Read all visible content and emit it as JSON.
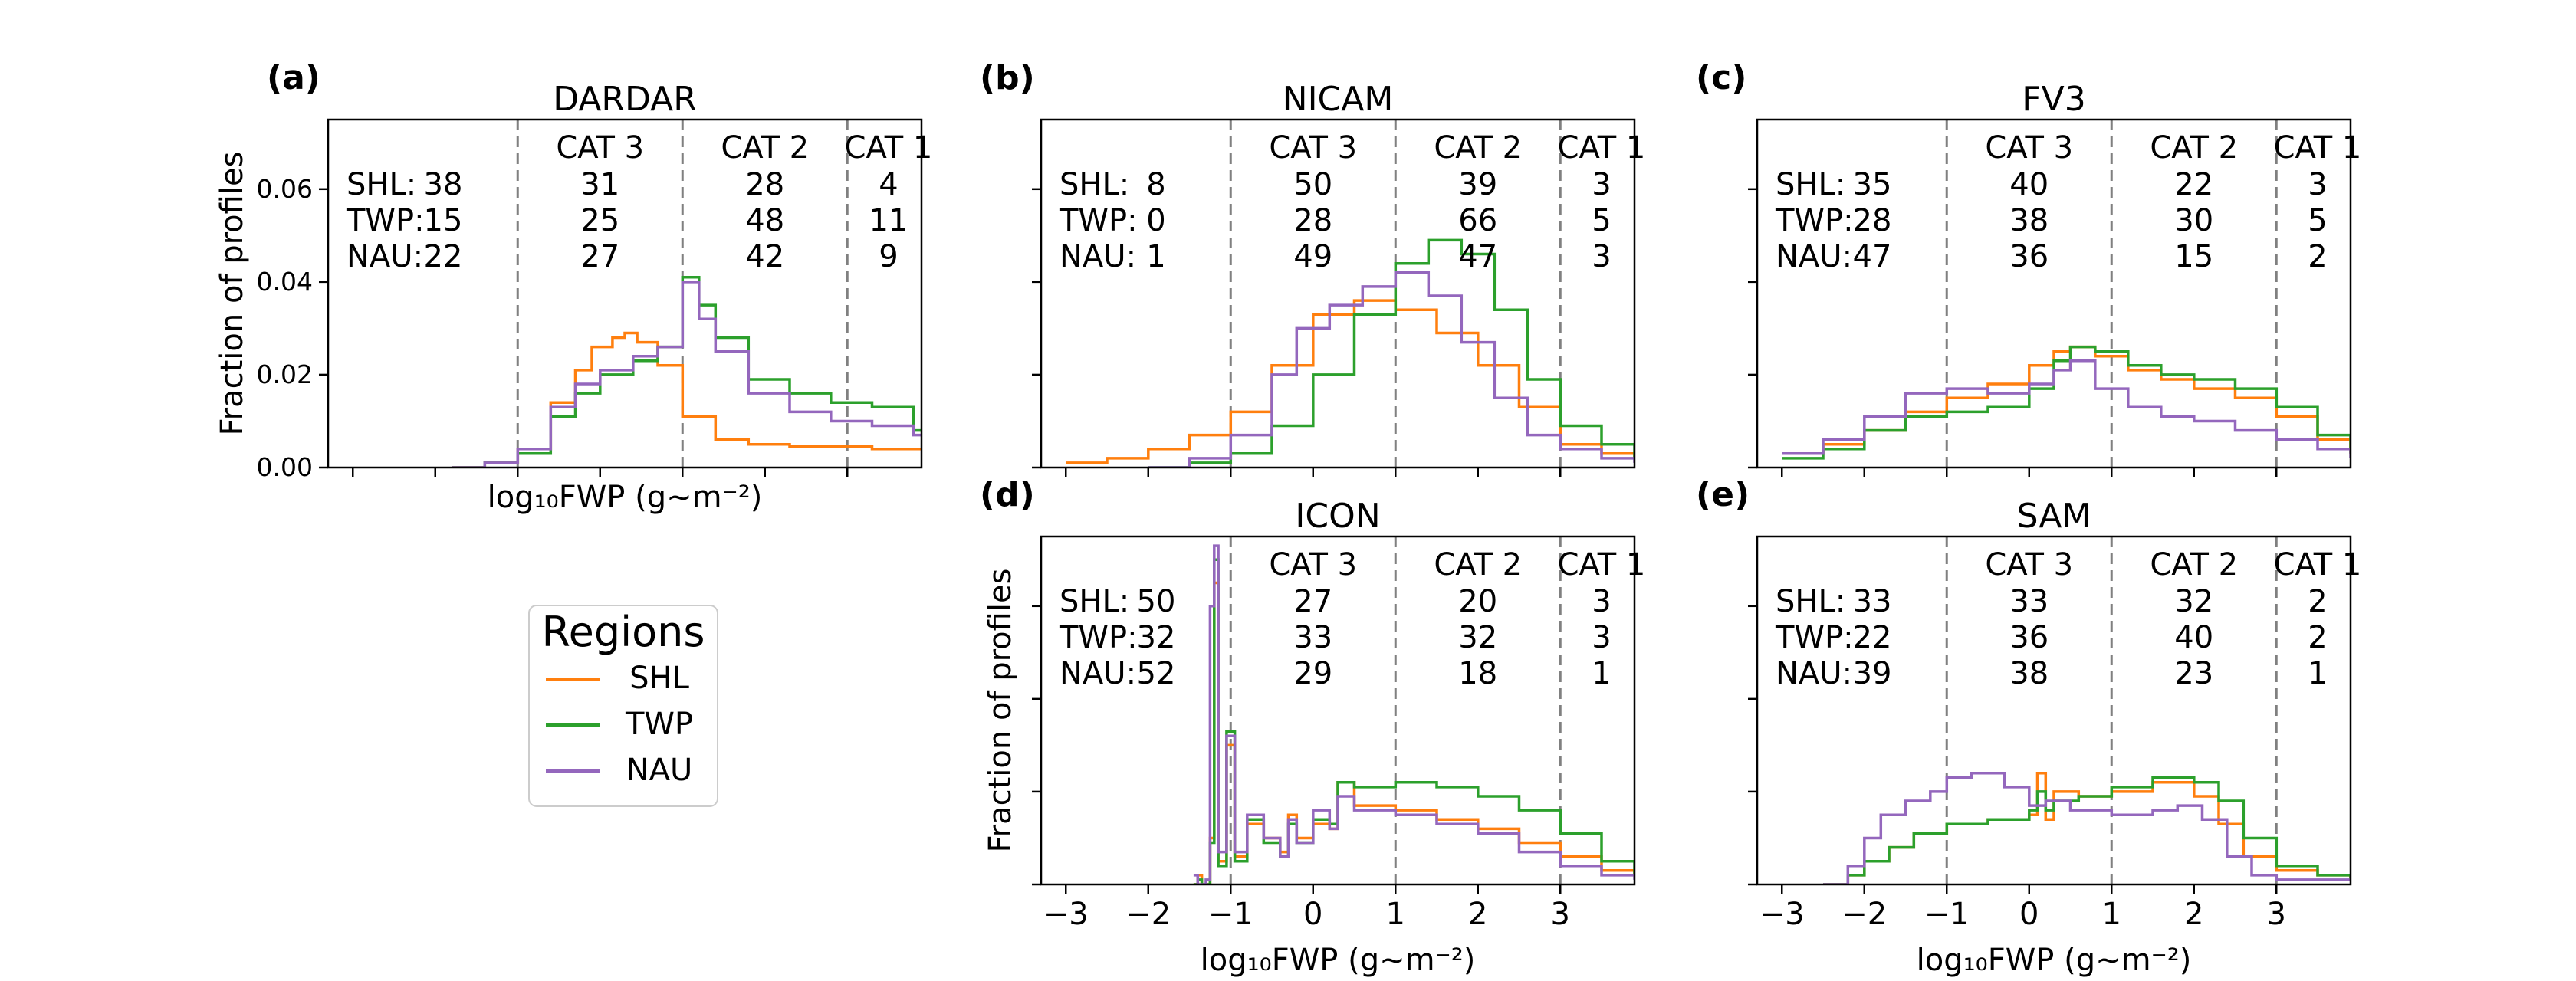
{
  "figure": {
    "xlabel": "log₁₀FWP (g~m⁻²)",
    "ylabel": "Fraction of profiles",
    "region_colors": {
      "SHL": "#ff7f0e",
      "TWP": "#2ca02c",
      "NAU": "#9467bd"
    }
  },
  "legend": {
    "title": "Regions",
    "entries": [
      {
        "label": "SHL",
        "color": "#ff7f0e"
      },
      {
        "label": "TWP",
        "color": "#2ca02c"
      },
      {
        "label": "NAU",
        "color": "#9467bd"
      }
    ]
  },
  "chart_data": [
    {
      "id": "a",
      "panel_label": "(a)",
      "title": "DARDAR",
      "type": "line",
      "xlim": [
        -3.3,
        3.9
      ],
      "ylim": [
        0,
        0.075
      ],
      "yticks": [
        "0.00",
        "0.02",
        "0.04",
        "0.06"
      ],
      "ytick_values": [
        0,
        0.02,
        0.04,
        0.06
      ],
      "xticks": [
        "",
        "",
        "",
        "",
        "",
        "",
        "",
        ""
      ],
      "xtick_values": [
        -3,
        -2,
        -1,
        0,
        1,
        2,
        3,
        4
      ],
      "show_xlabel": true,
      "show_ylabel": true,
      "cat_lines": [
        -1,
        1,
        3
      ],
      "cat_headers": [
        {
          "label": "CAT 3",
          "x": 0
        },
        {
          "label": "CAT 2",
          "x": 2
        },
        {
          "label": "CAT 1",
          "x": 3.5
        }
      ],
      "stats": [
        {
          "region": "SHL:",
          "n0": "38",
          "n1": "31",
          "n2": "28",
          "n3": "4"
        },
        {
          "region": "TWP:",
          "n0": "15",
          "n1": "25",
          "n2": "48",
          "n3": "11"
        },
        {
          "region": "NAU:",
          "n0": "22",
          "n1": "27",
          "n2": "42",
          "n3": "9"
        }
      ],
      "series": [
        {
          "name": "SHL",
          "x": [
            -1.8,
            -1.4,
            -1.0,
            -0.6,
            -0.3,
            -0.1,
            0.15,
            0.3,
            0.45,
            0.7,
            1.0,
            1.4,
            1.8,
            2.3,
            2.8,
            3.3,
            3.8
          ],
          "y": [
            0,
            0.001,
            0.004,
            0.014,
            0.021,
            0.026,
            0.028,
            0.029,
            0.027,
            0.022,
            0.011,
            0.006,
            0.005,
            0.0045,
            0.0045,
            0.004,
            0.004
          ]
        },
        {
          "name": "TWP",
          "x": [
            -1.8,
            -1.4,
            -1.0,
            -0.6,
            -0.3,
            0.0,
            0.4,
            0.7,
            1.0,
            1.2,
            1.4,
            1.8,
            2.3,
            2.8,
            3.3,
            3.8
          ],
          "y": [
            0,
            0.001,
            0.003,
            0.011,
            0.016,
            0.02,
            0.023,
            0.026,
            0.041,
            0.035,
            0.028,
            0.019,
            0.016,
            0.014,
            0.013,
            0.008
          ]
        },
        {
          "name": "NAU",
          "x": [
            -1.8,
            -1.4,
            -1.0,
            -0.6,
            -0.3,
            0.0,
            0.4,
            0.7,
            1.0,
            1.2,
            1.4,
            1.8,
            2.3,
            2.8,
            3.3,
            3.8
          ],
          "y": [
            0,
            0.001,
            0.004,
            0.013,
            0.018,
            0.021,
            0.024,
            0.026,
            0.04,
            0.032,
            0.025,
            0.016,
            0.012,
            0.01,
            0.009,
            0.007
          ]
        }
      ]
    },
    {
      "id": "b",
      "panel_label": "(b)",
      "title": "NICAM",
      "type": "line",
      "xlim": [
        -3.3,
        3.9
      ],
      "ylim": [
        0,
        0.075
      ],
      "yticks": [
        "",
        "",
        "",
        ""
      ],
      "ytick_values": [
        0,
        0.02,
        0.04,
        0.06
      ],
      "xticks": [
        "",
        "",
        "",
        "",
        "",
        "",
        "",
        ""
      ],
      "xtick_values": [
        -3,
        -2,
        -1,
        0,
        1,
        2,
        3,
        4
      ],
      "show_xlabel": false,
      "show_ylabel": false,
      "cat_lines": [
        -1,
        1,
        3
      ],
      "cat_headers": [
        {
          "label": "CAT 3",
          "x": 0
        },
        {
          "label": "CAT 2",
          "x": 2
        },
        {
          "label": "CAT 1",
          "x": 3.5
        }
      ],
      "stats": [
        {
          "region": "SHL:",
          "n0": "8",
          "n1": "50",
          "n2": "39",
          "n3": "3"
        },
        {
          "region": "TWP:",
          "n0": "0",
          "n1": "28",
          "n2": "66",
          "n3": "5"
        },
        {
          "region": "NAU:",
          "n0": "1",
          "n1": "49",
          "n2": "47",
          "n3": "3"
        }
      ],
      "series": [
        {
          "name": "SHL",
          "x": [
            -3.0,
            -2.5,
            -2.0,
            -1.5,
            -1.0,
            -0.5,
            0.0,
            0.5,
            1.0,
            1.5,
            2.0,
            2.5,
            3.0,
            3.5,
            3.9
          ],
          "y": [
            0.001,
            0.002,
            0.004,
            0.007,
            0.012,
            0.022,
            0.033,
            0.036,
            0.034,
            0.029,
            0.022,
            0.013,
            0.005,
            0.003,
            0.002
          ]
        },
        {
          "name": "TWP",
          "x": [
            -2.0,
            -1.5,
            -1.0,
            -0.5,
            0.0,
            0.5,
            1.0,
            1.4,
            1.8,
            2.2,
            2.6,
            3.0,
            3.5,
            3.9
          ],
          "y": [
            0,
            0.001,
            0.003,
            0.009,
            0.02,
            0.033,
            0.044,
            0.049,
            0.046,
            0.034,
            0.019,
            0.009,
            0.005,
            0.002
          ]
        },
        {
          "name": "NAU",
          "x": [
            -2.0,
            -1.5,
            -1.0,
            -0.5,
            -0.2,
            0.2,
            0.6,
            1.0,
            1.4,
            1.8,
            2.2,
            2.6,
            3.0,
            3.5,
            3.9
          ],
          "y": [
            0,
            0.002,
            0.007,
            0.02,
            0.03,
            0.035,
            0.039,
            0.042,
            0.037,
            0.027,
            0.015,
            0.007,
            0.004,
            0.002,
            0.001
          ]
        }
      ]
    },
    {
      "id": "c",
      "panel_label": "(c)",
      "title": "FV3",
      "type": "line",
      "xlim": [
        -3.3,
        3.9
      ],
      "ylim": [
        0,
        0.075
      ],
      "yticks": [
        "",
        "",
        "",
        ""
      ],
      "ytick_values": [
        0,
        0.02,
        0.04,
        0.06
      ],
      "xticks": [
        "",
        "",
        "",
        "",
        "",
        "",
        "",
        ""
      ],
      "xtick_values": [
        -3,
        -2,
        -1,
        0,
        1,
        2,
        3,
        4
      ],
      "show_xlabel": false,
      "show_ylabel": false,
      "cat_lines": [
        -1,
        1,
        3
      ],
      "cat_headers": [
        {
          "label": "CAT 3",
          "x": 0
        },
        {
          "label": "CAT 2",
          "x": 2
        },
        {
          "label": "CAT 1",
          "x": 3.5
        }
      ],
      "stats": [
        {
          "region": "SHL:",
          "n0": "35",
          "n1": "40",
          "n2": "22",
          "n3": "3"
        },
        {
          "region": "TWP:",
          "n0": "28",
          "n1": "38",
          "n2": "30",
          "n3": "5"
        },
        {
          "region": "NAU:",
          "n0": "47",
          "n1": "36",
          "n2": "15",
          "n3": "2"
        }
      ],
      "series": [
        {
          "name": "SHL",
          "x": [
            -3.0,
            -2.5,
            -2.0,
            -1.5,
            -1.0,
            -0.5,
            0.0,
            0.3,
            0.5,
            0.8,
            1.2,
            1.6,
            2.0,
            2.5,
            3.0,
            3.5,
            3.9
          ],
          "y": [
            0.003,
            0.005,
            0.008,
            0.012,
            0.015,
            0.018,
            0.022,
            0.025,
            0.026,
            0.024,
            0.021,
            0.019,
            0.017,
            0.015,
            0.011,
            0.006,
            0.003
          ]
        },
        {
          "name": "TWP",
          "x": [
            -3.0,
            -2.5,
            -2.0,
            -1.5,
            -1.0,
            -0.5,
            0.0,
            0.3,
            0.5,
            0.8,
            1.2,
            1.6,
            2.0,
            2.5,
            3.0,
            3.5,
            3.9
          ],
          "y": [
            0.002,
            0.004,
            0.008,
            0.011,
            0.012,
            0.013,
            0.017,
            0.023,
            0.026,
            0.025,
            0.022,
            0.02,
            0.019,
            0.017,
            0.013,
            0.007,
            0.003
          ]
        },
        {
          "name": "NAU",
          "x": [
            -3.0,
            -2.5,
            -2.0,
            -1.5,
            -1.0,
            -0.5,
            0.0,
            0.3,
            0.5,
            0.8,
            1.2,
            1.6,
            2.0,
            2.5,
            3.0,
            3.5,
            3.9
          ],
          "y": [
            0.003,
            0.006,
            0.011,
            0.016,
            0.017,
            0.016,
            0.018,
            0.021,
            0.023,
            0.017,
            0.013,
            0.011,
            0.01,
            0.008,
            0.006,
            0.004,
            0.002
          ]
        }
      ]
    },
    {
      "id": "d",
      "panel_label": "(d)",
      "title": "ICON",
      "type": "line",
      "xlim": [
        -3.3,
        3.9
      ],
      "ylim": [
        0,
        0.075
      ],
      "yticks": [
        "",
        "",
        "",
        ""
      ],
      "ytick_values": [
        0,
        0.02,
        0.04,
        0.06
      ],
      "xticks": [
        "−3",
        "−2",
        "−1",
        "0",
        "1",
        "2",
        "3",
        ""
      ],
      "xtick_values": [
        -3,
        -2,
        -1,
        0,
        1,
        2,
        3,
        4
      ],
      "show_xlabel": true,
      "show_ylabel": true,
      "cat_lines": [
        -1,
        1,
        3
      ],
      "cat_headers": [
        {
          "label": "CAT 3",
          "x": 0
        },
        {
          "label": "CAT 2",
          "x": 2
        },
        {
          "label": "CAT 1",
          "x": 3.5
        }
      ],
      "stats": [
        {
          "region": "SHL:",
          "n0": "50",
          "n1": "27",
          "n2": "20",
          "n3": "3"
        },
        {
          "region": "TWP:",
          "n0": "32",
          "n1": "33",
          "n2": "32",
          "n3": "3"
        },
        {
          "region": "NAU:",
          "n0": "52",
          "n1": "29",
          "n2": "18",
          "n3": "1"
        }
      ],
      "series": [
        {
          "name": "SHL",
          "x": [
            -1.45,
            -1.4,
            -1.35,
            -1.3,
            -1.25,
            -1.2,
            -1.15,
            -1.05,
            -0.95,
            -0.8,
            -0.6,
            -0.4,
            -0.3,
            -0.2,
            0.0,
            0.2,
            0.3,
            0.5,
            1.0,
            1.5,
            2.0,
            2.5,
            3.0,
            3.5,
            3.9
          ],
          "y": [
            0,
            0.002,
            0,
            0,
            0.01,
            0.065,
            0.005,
            0.03,
            0.006,
            0.013,
            0.01,
            0.007,
            0.015,
            0.01,
            0.013,
            0.012,
            0.022,
            0.017,
            0.016,
            0.014,
            0.012,
            0.009,
            0.006,
            0.003,
            0.002
          ]
        },
        {
          "name": "TWP",
          "x": [
            -1.45,
            -1.4,
            -1.35,
            -1.3,
            -1.25,
            -1.2,
            -1.15,
            -1.05,
            -0.95,
            -0.8,
            -0.6,
            -0.4,
            -0.3,
            -0.2,
            0.0,
            0.2,
            0.3,
            0.5,
            1.0,
            1.5,
            2.0,
            2.5,
            3.0,
            3.5,
            3.9
          ],
          "y": [
            0,
            0.001,
            0,
            0,
            0.009,
            0.07,
            0.004,
            0.033,
            0.005,
            0.014,
            0.009,
            0.006,
            0.013,
            0.009,
            0.014,
            0.013,
            0.022,
            0.021,
            0.022,
            0.021,
            0.019,
            0.016,
            0.011,
            0.005,
            0.002
          ]
        },
        {
          "name": "NAU",
          "x": [
            -1.45,
            -1.4,
            -1.35,
            -1.3,
            -1.25,
            -1.2,
            -1.15,
            -1.05,
            -0.95,
            -0.8,
            -0.6,
            -0.4,
            -0.3,
            -0.2,
            0.0,
            0.2,
            0.3,
            0.5,
            1.0,
            1.5,
            2.0,
            2.5,
            3.0,
            3.5,
            3.9
          ],
          "y": [
            0.002,
            0,
            0,
            0.001,
            0.06,
            0.073,
            0.007,
            0.032,
            0.007,
            0.015,
            0.01,
            0.006,
            0.014,
            0.009,
            0.016,
            0.012,
            0.019,
            0.016,
            0.015,
            0.013,
            0.011,
            0.007,
            0.004,
            0.002,
            0.001
          ]
        }
      ]
    },
    {
      "id": "e",
      "panel_label": "(e)",
      "title": "SAM",
      "type": "line",
      "xlim": [
        -3.3,
        3.9
      ],
      "ylim": [
        0,
        0.075
      ],
      "yticks": [
        "",
        "",
        "",
        ""
      ],
      "ytick_values": [
        0,
        0.02,
        0.04,
        0.06
      ],
      "xticks": [
        "−3",
        "−2",
        "−1",
        "0",
        "1",
        "2",
        "3",
        ""
      ],
      "xtick_values": [
        -3,
        -2,
        -1,
        0,
        1,
        2,
        3,
        4
      ],
      "show_xlabel": true,
      "show_ylabel": false,
      "cat_lines": [
        -1,
        1,
        3
      ],
      "cat_headers": [
        {
          "label": "CAT 3",
          "x": 0
        },
        {
          "label": "CAT 2",
          "x": 2
        },
        {
          "label": "CAT 1",
          "x": 3.5
        }
      ],
      "stats": [
        {
          "region": "SHL:",
          "n0": "33",
          "n1": "33",
          "n2": "32",
          "n3": "2"
        },
        {
          "region": "TWP:",
          "n0": "22",
          "n1": "36",
          "n2": "40",
          "n3": "2"
        },
        {
          "region": "NAU:",
          "n0": "39",
          "n1": "38",
          "n2": "23",
          "n3": "1"
        }
      ],
      "series": [
        {
          "name": "SHL",
          "x": [
            -2.5,
            -2.2,
            -2.0,
            -1.7,
            -1.4,
            -1.0,
            -0.5,
            0.0,
            0.1,
            0.2,
            0.3,
            0.6,
            1.0,
            1.5,
            2.0,
            2.3,
            2.6,
            3.0,
            3.5,
            3.9
          ],
          "y": [
            0,
            0.002,
            0.005,
            0.008,
            0.011,
            0.013,
            0.014,
            0.015,
            0.024,
            0.014,
            0.02,
            0.019,
            0.02,
            0.022,
            0.019,
            0.013,
            0.006,
            0.003,
            0.002,
            0.001
          ]
        },
        {
          "name": "TWP",
          "x": [
            -2.5,
            -2.2,
            -2.0,
            -1.7,
            -1.4,
            -1.0,
            -0.5,
            0.0,
            0.1,
            0.2,
            0.3,
            0.6,
            1.0,
            1.5,
            2.0,
            2.3,
            2.6,
            3.0,
            3.5,
            3.9
          ],
          "y": [
            0,
            0.002,
            0.005,
            0.008,
            0.011,
            0.013,
            0.014,
            0.016,
            0.02,
            0.016,
            0.018,
            0.019,
            0.021,
            0.023,
            0.022,
            0.018,
            0.01,
            0.004,
            0.002,
            0.001
          ]
        },
        {
          "name": "NAU",
          "x": [
            -2.5,
            -2.2,
            -2.0,
            -1.8,
            -1.5,
            -1.2,
            -1.0,
            -0.7,
            -0.3,
            0.0,
            0.2,
            0.5,
            1.0,
            1.5,
            1.8,
            2.1,
            2.4,
            2.7,
            3.0,
            3.5,
            3.9
          ],
          "y": [
            0,
            0.004,
            0.01,
            0.015,
            0.018,
            0.02,
            0.023,
            0.024,
            0.021,
            0.017,
            0.018,
            0.016,
            0.015,
            0.016,
            0.017,
            0.014,
            0.006,
            0.002,
            0.001,
            0.001,
            0.001
          ]
        }
      ]
    }
  ]
}
